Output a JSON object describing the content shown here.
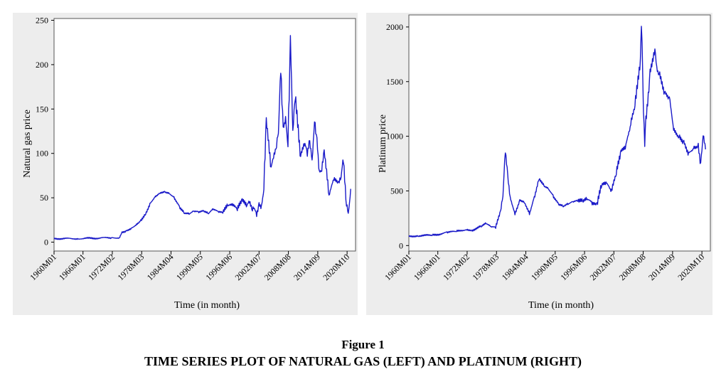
{
  "figure": {
    "number": "Figure 1",
    "title": "TIME SERIES PLOT OF NATURAL GAS (LEFT) AND PLATINUM (RIGHT)"
  },
  "chart_data": [
    {
      "type": "line",
      "xlabel": "Time (in month)",
      "ylabel": "Natural gas price",
      "xlim": [
        1960.0,
        2022.5
      ],
      "ylim": [
        -10,
        252
      ],
      "yticks": [
        0,
        50,
        100,
        150,
        200,
        250
      ],
      "xtick_labels": [
        "1960M01",
        "1966M01",
        "1972M02",
        "1978M03",
        "1984M04",
        "1990M05",
        "1996M06",
        "2002M07",
        "2008M08",
        "2014M09",
        "2020M10"
      ],
      "xtick_years": [
        1960.0,
        1966.0,
        1972.08,
        1978.17,
        1984.25,
        1990.33,
        1996.42,
        2002.5,
        2008.58,
        2014.67,
        2020.75
      ],
      "grid": false,
      "line_color": "#1a1ac8",
      "series": [
        {
          "x": [
            1960,
            1965,
            1972,
            1973.5,
            1974,
            1975,
            1976,
            1977,
            1978,
            1979,
            1980,
            1981,
            1982,
            1983,
            1984,
            1985,
            1986,
            1987,
            1988,
            1989,
            1990,
            1991,
            1992,
            1993,
            1994,
            1995,
            1996,
            1997,
            1998,
            1999,
            2000,
            2000.5,
            2001,
            2001.5,
            2002,
            2002.5,
            2003,
            2003.5,
            2004,
            2005,
            2005.5,
            2006,
            2006.5,
            2007,
            2007.5,
            2008,
            2008.5,
            2009,
            2009.5,
            2010,
            2011,
            2012,
            2012.5,
            2013,
            2013.5,
            2014,
            2014.5,
            2015,
            2015.5,
            2016,
            2017,
            2018,
            2019,
            2019.5,
            2020,
            2020.5,
            2021,
            2021.5
          ],
          "y": [
            4,
            4,
            5,
            5,
            11,
            13,
            16,
            20,
            25,
            33,
            45,
            52,
            56,
            57,
            55,
            50,
            40,
            33,
            32,
            35,
            34,
            35,
            32,
            37,
            34,
            33,
            40,
            41,
            36,
            46,
            40,
            45,
            36,
            40,
            33,
            44,
            40,
            60,
            133,
            82,
            95,
            103,
            125,
            202,
            130,
            140,
            110,
            222,
            120,
            165,
            95,
            110,
            100,
            115,
            95,
            140,
            115,
            78,
            80,
            100,
            50,
            70,
            65,
            72,
            95,
            48,
            35,
            60
          ]
        }
      ]
    },
    {
      "type": "line",
      "xlabel": "Time (in month)",
      "ylabel": "Platinum price",
      "xlim": [
        1960.0,
        2022.5
      ],
      "ylim": [
        -50,
        2110
      ],
      "yticks": [
        0,
        500,
        1000,
        1500,
        2000
      ],
      "xtick_labels": [
        "1960M01",
        "1966M01",
        "1972M02",
        "1978M03",
        "1984M04",
        "1990M05",
        "1996M06",
        "2002M07",
        "2008M08",
        "2014M09",
        "2020M10"
      ],
      "xtick_years": [
        1960.0,
        1966.0,
        1972.08,
        1978.17,
        1984.25,
        1990.33,
        1996.42,
        2002.5,
        2008.58,
        2014.67,
        2020.75
      ],
      "grid": false,
      "line_color": "#1a1ac8",
      "series": [
        {
          "x": [
            1960,
            1962,
            1965,
            1968,
            1970,
            1972,
            1973,
            1975,
            1976,
            1977,
            1978,
            1979,
            1979.5,
            1980,
            1980.5,
            1981,
            1982,
            1983,
            1984,
            1985,
            1986,
            1987,
            1988,
            1989,
            1990,
            1991,
            1992,
            1993,
            1994,
            1995,
            1996,
            1997,
            1998,
            1999,
            2000,
            2001,
            2002,
            2003,
            2004,
            2005,
            2006,
            2007,
            2008,
            2008.2,
            2008.5,
            2008.9,
            2009,
            2010,
            2011,
            2011.5,
            2012,
            2013,
            2014,
            2015,
            2016,
            2017,
            2018,
            2019,
            2020,
            2020.5,
            2021,
            2021.5
          ],
          "y": [
            85,
            90,
            95,
            120,
            130,
            150,
            140,
            175,
            200,
            170,
            165,
            300,
            450,
            880,
            650,
            450,
            300,
            420,
            400,
            300,
            450,
            620,
            550,
            520,
            450,
            380,
            360,
            380,
            400,
            410,
            400,
            420,
            380,
            360,
            550,
            560,
            480,
            650,
            850,
            900,
            1100,
            1300,
            1700,
            2050,
            1500,
            900,
            1100,
            1600,
            1820,
            1600,
            1550,
            1400,
            1350,
            1050,
            1000,
            950,
            850,
            900,
            920,
            750,
            1000,
            880
          ]
        }
      ]
    }
  ]
}
